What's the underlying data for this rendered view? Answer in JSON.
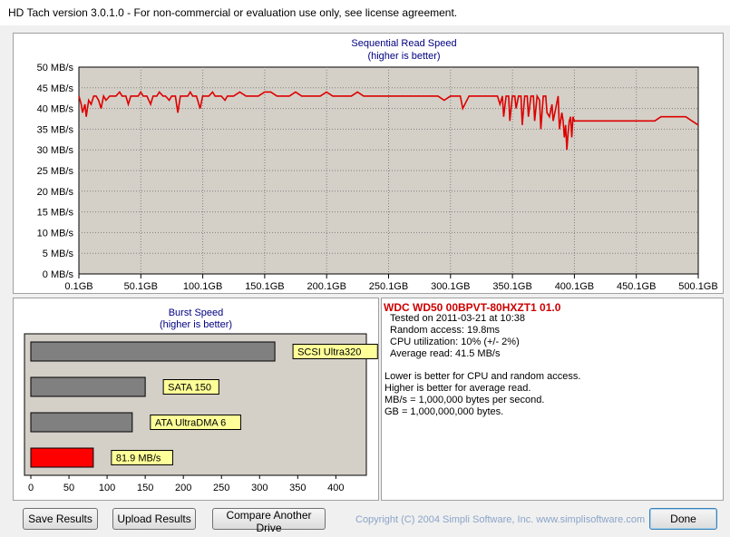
{
  "window": {
    "title": "HD Tach version 3.0.1.0  - For non-commercial or evaluation use only, see license agreement."
  },
  "chart_data": [
    {
      "type": "line",
      "title": "Sequential Read Speed",
      "subtitle": "(higher is better)",
      "xlabel": "",
      "ylabel": "",
      "ylim": [
        0,
        50
      ],
      "y_ticks": [
        "0 MB/s",
        "5 MB/s",
        "10 MB/s",
        "15 MB/s",
        "20 MB/s",
        "25 MB/s",
        "30 MB/s",
        "35 MB/s",
        "40 MB/s",
        "45 MB/s",
        "50 MB/s"
      ],
      "x_ticks": [
        "0.1GB",
        "50.1GB",
        "100.1GB",
        "150.1GB",
        "200.1GB",
        "250.1GB",
        "300.1GB",
        "350.1GB",
        "400.1GB",
        "450.1GB",
        "500.1GB"
      ],
      "xlim": [
        0.1,
        500.1
      ],
      "grid": true,
      "series": [
        {
          "color": "#dd0000",
          "x": [
            0.1,
            2,
            3,
            5,
            6,
            7,
            8,
            10,
            12,
            14,
            16,
            18,
            20,
            22,
            25,
            28,
            30,
            33,
            35,
            38,
            40,
            42,
            45,
            48,
            50,
            52,
            55,
            58,
            60,
            63,
            65,
            68,
            70,
            73,
            75,
            78,
            80,
            82,
            85,
            88,
            90,
            92,
            95,
            98,
            100,
            102,
            105,
            108,
            110,
            113,
            115,
            118,
            120,
            125,
            130,
            135,
            140,
            145,
            150,
            155,
            160,
            165,
            170,
            175,
            180,
            185,
            190,
            195,
            200,
            205,
            210,
            215,
            220,
            225,
            230,
            235,
            240,
            245,
            250,
            255,
            260,
            265,
            270,
            275,
            280,
            285,
            290,
            295,
            300,
            302,
            305,
            308,
            310,
            315,
            320,
            325,
            330,
            335,
            338,
            340,
            342,
            343,
            345,
            347,
            348,
            350,
            352,
            353,
            355,
            357,
            358,
            360,
            362,
            363,
            365,
            367,
            368,
            370,
            372,
            373,
            375,
            377,
            378,
            380,
            382,
            383,
            385,
            387,
            388,
            390,
            391,
            392,
            393,
            394,
            395,
            396,
            397,
            398,
            399,
            400,
            402,
            405,
            410,
            415,
            420,
            425,
            430,
            435,
            440,
            445,
            450,
            455,
            460,
            465,
            470,
            475,
            480,
            485,
            490,
            495,
            500.1
          ],
          "values": [
            43,
            41,
            39,
            41,
            38,
            40,
            42,
            41,
            43,
            43,
            42,
            40,
            43,
            42,
            43,
            43,
            43,
            44,
            43,
            43,
            41,
            43,
            43,
            43,
            44,
            43,
            43,
            41,
            43,
            43,
            44,
            43,
            43,
            42,
            43,
            43,
            39,
            43,
            43,
            43,
            44,
            43,
            43,
            40,
            43,
            43,
            43,
            44,
            43,
            43,
            43,
            42,
            43,
            43,
            44,
            43,
            43,
            43,
            44,
            44,
            43,
            43,
            43,
            44,
            43,
            43,
            43,
            43,
            44,
            43,
            43,
            43,
            43,
            44,
            43,
            43,
            43,
            43,
            43,
            43,
            43,
            43,
            43,
            43,
            43,
            43,
            43,
            42,
            43,
            43,
            43,
            43,
            40,
            43,
            43,
            43,
            43,
            43,
            43,
            41,
            43,
            38,
            43,
            43,
            37,
            43,
            43,
            40,
            43,
            43,
            36,
            43,
            43,
            38,
            43,
            43,
            37,
            43,
            42,
            35,
            43,
            43,
            39,
            38,
            41,
            37,
            40,
            43,
            35,
            39,
            37,
            33,
            36,
            30,
            34,
            37,
            38,
            33,
            38,
            37,
            37,
            37,
            37,
            37,
            37,
            37,
            37,
            37,
            37,
            37,
            37,
            37,
            37,
            37,
            38,
            38,
            38,
            38,
            38,
            37,
            36
          ]
        }
      ]
    },
    {
      "type": "bar",
      "orientation": "horizontal",
      "title": "Burst Speed",
      "subtitle": "(higher is better)",
      "xlabel": "",
      "ylabel": "",
      "xlim": [
        0,
        440
      ],
      "x_ticks": [
        "0",
        "50",
        "100",
        "150",
        "200",
        "250",
        "300",
        "350",
        "400"
      ],
      "grid": false,
      "categories": [
        "SCSI Ultra320",
        "SATA 150",
        "ATA UltraDMA 6",
        "81.9 MB/s"
      ],
      "values": [
        320,
        150,
        133,
        81.9
      ],
      "colors": [
        "#808080",
        "#808080",
        "#808080",
        "#ff0000"
      ]
    }
  ],
  "drive_info": {
    "drive": "WDC WD50 00BPVT-80HXZT1 01.0",
    "tested_on": "Tested on 2011-03-21 at 10:38",
    "random_access": "Random access: 19.8ms",
    "cpu": "CPU utilization: 10% (+/- 2%)",
    "avg_read": "Average read: 41.5 MB/s",
    "note1": "Lower is better for CPU and random access.",
    "note2": "Higher is better for average read.",
    "note3": "MB/s = 1,000,000 bytes per second.",
    "note4": "GB = 1,000,000,000 bytes."
  },
  "buttons": {
    "save": "Save Results",
    "upload": "Upload Results",
    "compare": "Compare Another Drive",
    "done": "Done"
  },
  "copyright": "Copyright (C) 2004 Simpli Software, Inc. www.simplisoftware.com"
}
